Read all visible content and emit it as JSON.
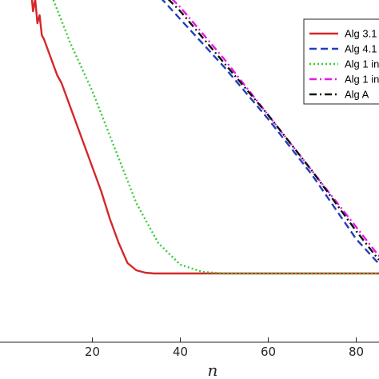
{
  "chart_data": {
    "type": "line",
    "xlabel": "n",
    "ylabel": "",
    "xlim": [
      -1,
      91
    ],
    "xticks": [
      20,
      40,
      60,
      80
    ],
    "x_tick_labels": [
      "20",
      "40",
      "60",
      "80"
    ],
    "grid": false,
    "legend_position": "top-right",
    "series": [
      {
        "name": "Alg 3.1",
        "color": "#d62728",
        "style": "solid",
        "x": [
          0,
          0.5,
          1,
          1.5,
          2,
          2.5,
          3,
          3.5,
          4,
          4.5,
          5,
          5.5,
          6,
          6.5,
          7,
          7.5,
          8,
          8.5,
          9,
          10,
          11,
          12,
          13,
          14,
          16,
          18,
          20,
          22,
          24,
          26,
          28,
          30,
          32,
          34,
          36,
          40,
          50,
          60,
          70,
          80,
          90
        ],
        "y": [
          0.78,
          0.73,
          0.69,
          0.67,
          0.69,
          0.65,
          0.67,
          0.62,
          0.64,
          0.6,
          0.61,
          0.58,
          0.59,
          0.56,
          0.575,
          0.545,
          0.555,
          0.53,
          0.525,
          0.51,
          0.495,
          0.48,
          0.47,
          0.455,
          0.425,
          0.395,
          0.365,
          0.335,
          0.3,
          0.27,
          0.245,
          0.236,
          0.233,
          0.232,
          0.232,
          0.232,
          0.232,
          0.232,
          0.232,
          0.232,
          0.232
        ]
      },
      {
        "name": "Alg 4.1",
        "color": "#1f3fbf",
        "style": "dashed",
        "x": [
          0,
          1,
          10,
          20,
          30,
          40,
          50,
          60,
          70,
          80,
          85,
          90
        ],
        "y": [
          0.79,
          0.76,
          0.715,
          0.665,
          0.61,
          0.55,
          0.49,
          0.425,
          0.355,
          0.275,
          0.245,
          0.235
        ]
      },
      {
        "name": "Alg 1 in",
        "color": "#33cc33",
        "style": "dotted",
        "x": [
          0,
          1,
          5,
          10,
          15,
          20,
          25,
          30,
          35,
          40,
          45,
          50,
          60,
          70,
          80,
          90
        ],
        "y": [
          0.79,
          0.75,
          0.67,
          0.59,
          0.52,
          0.46,
          0.39,
          0.32,
          0.27,
          0.243,
          0.234,
          0.232,
          0.232,
          0.232,
          0.232,
          0.232
        ]
      },
      {
        "name": "Alg 1 in",
        "color": "#e619e6",
        "style": "dashdot",
        "x": [
          0,
          1,
          10,
          20,
          30,
          40,
          50,
          60,
          70,
          80,
          85,
          90
        ],
        "y": [
          0.79,
          0.765,
          0.725,
          0.675,
          0.62,
          0.565,
          0.5,
          0.43,
          0.36,
          0.29,
          0.255,
          0.235
        ]
      },
      {
        "name": "Alg  A",
        "color": "#111111",
        "style": "dashdot",
        "x": [
          0,
          0.5,
          1,
          2,
          10,
          20,
          30,
          40,
          50,
          60,
          70,
          80,
          85,
          90
        ],
        "y": [
          0.81,
          0.78,
          0.76,
          0.75,
          0.715,
          0.67,
          0.615,
          0.56,
          0.495,
          0.43,
          0.36,
          0.285,
          0.25,
          0.24
        ]
      }
    ]
  }
}
